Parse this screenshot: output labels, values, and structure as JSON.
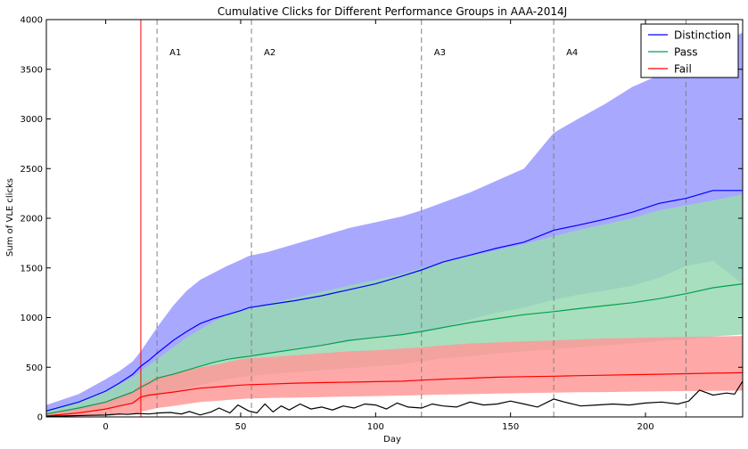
{
  "chart_data": {
    "type": "line",
    "title": "Cumulative Clicks for Different Performance Groups in AAA-2014J",
    "xlabel": "Day",
    "ylabel": "Sum of VLE clicks",
    "xlim": [
      -22,
      236
    ],
    "ylim": [
      0,
      4000
    ],
    "xticks": [
      0,
      50,
      100,
      150,
      200
    ],
    "yticks": [
      0,
      500,
      1000,
      1500,
      2000,
      2500,
      3000,
      3500,
      4000
    ],
    "grid": false,
    "legend_position": "top-right",
    "x": [
      -22,
      -10,
      0,
      5,
      10,
      13,
      16,
      19,
      25,
      30,
      35,
      40,
      45,
      50,
      53,
      60,
      70,
      80,
      90,
      100,
      110,
      117,
      125,
      135,
      145,
      155,
      166,
      175,
      185,
      195,
      205,
      215,
      225,
      236
    ],
    "series": [
      {
        "name": "Distinction",
        "color": "#0000ff",
        "band_color": "#9999ff",
        "values": [
          60,
          150,
          260,
          340,
          430,
          510,
          570,
          640,
          770,
          860,
          940,
          990,
          1030,
          1070,
          1100,
          1130,
          1170,
          1220,
          1280,
          1340,
          1420,
          1480,
          1560,
          1630,
          1700,
          1760,
          1880,
          1930,
          1990,
          2060,
          2150,
          2200,
          2280,
          2280
        ],
        "upper": [
          120,
          230,
          380,
          460,
          560,
          660,
          780,
          900,
          1120,
          1270,
          1380,
          1450,
          1520,
          1580,
          1620,
          1660,
          1740,
          1820,
          1900,
          1960,
          2020,
          2080,
          2160,
          2260,
          2380,
          2500,
          2860,
          3000,
          3150,
          3320,
          3440,
          3540,
          3720,
          3870
        ],
        "lower": [
          20,
          60,
          120,
          170,
          220,
          270,
          310,
          360,
          430,
          480,
          520,
          560,
          590,
          600,
          620,
          640,
          680,
          720,
          760,
          800,
          830,
          850,
          900,
          980,
          1050,
          1100,
          1180,
          1230,
          1270,
          1320,
          1400,
          1520,
          1570,
          1340
        ]
      },
      {
        "name": "Pass",
        "color": "#00a050",
        "band_color": "#99d9b3",
        "values": [
          30,
          90,
          150,
          200,
          250,
          300,
          340,
          390,
          430,
          470,
          510,
          550,
          580,
          600,
          610,
          640,
          680,
          720,
          770,
          800,
          830,
          860,
          900,
          950,
          990,
          1030,
          1060,
          1090,
          1120,
          1150,
          1190,
          1240,
          1300,
          1340
        ],
        "upper": [
          70,
          160,
          260,
          330,
          400,
          460,
          520,
          580,
          700,
          800,
          880,
          960,
          1030,
          1080,
          1100,
          1140,
          1200,
          1260,
          1320,
          1380,
          1440,
          1500,
          1560,
          1620,
          1680,
          1740,
          1820,
          1880,
          1940,
          2000,
          2080,
          2130,
          2180,
          2240
        ],
        "lower": [
          10,
          40,
          70,
          100,
          130,
          160,
          190,
          220,
          260,
          290,
          320,
          350,
          380,
          400,
          410,
          430,
          450,
          470,
          490,
          510,
          530,
          560,
          590,
          610,
          640,
          660,
          680,
          700,
          720,
          740,
          760,
          780,
          810,
          830
        ]
      },
      {
        "name": "Fail",
        "color": "#ff0000",
        "band_color": "#ff9999",
        "values": [
          10,
          40,
          80,
          110,
          140,
          200,
          220,
          230,
          250,
          270,
          290,
          300,
          310,
          320,
          325,
          330,
          340,
          345,
          350,
          355,
          360,
          370,
          380,
          390,
          400,
          405,
          410,
          415,
          420,
          425,
          430,
          435,
          440,
          445
        ],
        "upper": [
          30,
          90,
          160,
          210,
          260,
          330,
          370,
          400,
          440,
          470,
          500,
          520,
          550,
          580,
          590,
          600,
          620,
          640,
          660,
          670,
          690,
          700,
          720,
          740,
          750,
          760,
          770,
          780,
          790,
          795,
          800,
          805,
          810,
          815
        ],
        "lower": [
          0,
          5,
          10,
          20,
          30,
          50,
          70,
          90,
          110,
          130,
          150,
          160,
          170,
          180,
          185,
          190,
          195,
          200,
          205,
          210,
          215,
          220,
          225,
          230,
          235,
          240,
          245,
          248,
          250,
          255,
          258,
          260,
          262,
          265
        ]
      },
      {
        "name": "",
        "color": "#000000",
        "x": [
          -22,
          -15,
          -8,
          0,
          5,
          8,
          12,
          16,
          20,
          24,
          28,
          31,
          35,
          39,
          42,
          46,
          49,
          53,
          56,
          59,
          62,
          65,
          68,
          72,
          76,
          80,
          84,
          88,
          92,
          96,
          100,
          104,
          108,
          112,
          117,
          121,
          125,
          130,
          135,
          140,
          145,
          150,
          155,
          160,
          166,
          170,
          176,
          182,
          188,
          194,
          200,
          206,
          212,
          216,
          220,
          225,
          230,
          233,
          236
        ],
        "values": [
          5,
          10,
          15,
          20,
          30,
          25,
          35,
          30,
          40,
          45,
          30,
          55,
          20,
          50,
          90,
          40,
          120,
          60,
          40,
          130,
          50,
          110,
          70,
          130,
          80,
          100,
          70,
          110,
          90,
          130,
          120,
          80,
          140,
          100,
          90,
          130,
          110,
          100,
          150,
          120,
          130,
          160,
          130,
          100,
          180,
          150,
          110,
          120,
          130,
          120,
          140,
          150,
          130,
          160,
          270,
          220,
          240,
          230,
          360
        ]
      }
    ],
    "vertical_lines": [
      {
        "x": 13,
        "style": "solid",
        "color": "#ff0000"
      },
      {
        "x": 19,
        "style": "dashed",
        "color": "#808080",
        "label": "A1"
      },
      {
        "x": 54,
        "style": "dashed",
        "color": "#808080",
        "label": "A2"
      },
      {
        "x": 117,
        "style": "dashed",
        "color": "#808080",
        "label": "A3"
      },
      {
        "x": 166,
        "style": "dashed",
        "color": "#808080",
        "label": "A4"
      },
      {
        "x": 215,
        "style": "dashed",
        "color": "#808080"
      }
    ]
  }
}
